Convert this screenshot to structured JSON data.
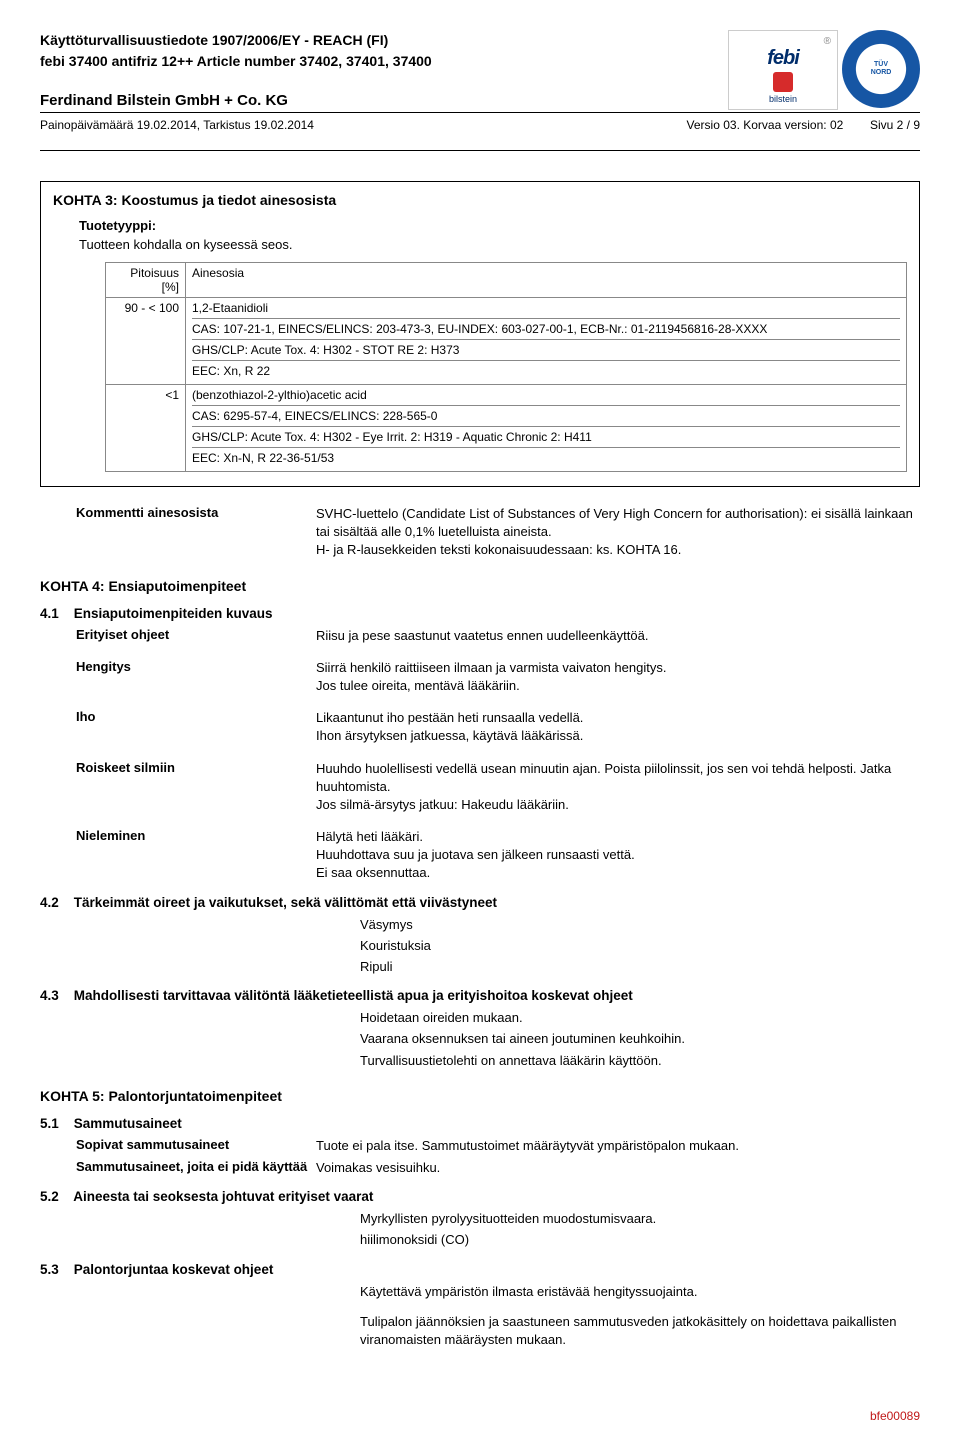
{
  "header": {
    "title1": "Käyttöturvallisuustiedote 1907/2006/EY - REACH (FI)",
    "title2": "febi 37400 antifriz 12++ Article number 37402, 37401, 37400",
    "company": "Ferdinand Bilstein GmbH + Co. KG",
    "date_line": "Painopäivämäärä 19.02.2014, Tarkistus 19.02.2014",
    "version": "Versio 03. Korvaa version: 02",
    "page": "Sivu 2 / 9"
  },
  "logos": {
    "febi_name": "febi",
    "febi_sub": "bilstein",
    "tuv_label": "TÜV NORD"
  },
  "section3": {
    "title": "KOHTA 3: Koostumus ja tiedot ainesosista",
    "type_label": "Tuotetyyppi:",
    "type_value": "Tuotteen kohdalla on kyseessä seos.",
    "col_pct": "Pitoisuus [%]",
    "col_name": "Ainesosia",
    "rows": [
      {
        "pct": "90 - < 100",
        "name": "1,2-Etaanidioli",
        "lines": [
          "CAS: 107-21-1, EINECS/ELINCS: 203-473-3, EU-INDEX: 603-027-00-1, ECB-Nr.: 01-2119456816-28-XXXX",
          "GHS/CLP: Acute Tox. 4: H302 - STOT RE 2: H373",
          "EEC: Xn, R 22"
        ]
      },
      {
        "pct": "<1",
        "name": "(benzothiazol-2-ylthio)acetic acid",
        "lines": [
          "CAS: 6295-57-4, EINECS/ELINCS: 228-565-0",
          "GHS/CLP: Acute Tox. 4: H302 - Eye Irrit. 2: H319 - Aquatic Chronic 2: H411",
          "EEC: Xn-N, R 22-36-51/53"
        ]
      }
    ],
    "comment_label": "Kommentti ainesosista",
    "comment_value": "SVHC-luettelo (Candidate List of Substances of Very High Concern for authorisation): ei sisällä lainkaan tai sisältää alle 0,1% luetelluista aineista.\nH- ja R-lausekkeiden teksti kokonaisuudessaan: ks. KOHTA 16."
  },
  "section4": {
    "title": "KOHTA 4: Ensiaputoimenpiteet",
    "s41_num": "4.1",
    "s41_title": "Ensiaputoimenpiteiden kuvaus",
    "rows": [
      {
        "k": "Erityiset ohjeet",
        "v": "Riisu ja pese saastunut vaatetus ennen uudelleenkäyttöä."
      },
      {
        "k": "Hengitys",
        "v": "Siirrä henkilö raittiiseen ilmaan ja varmista vaivaton hengitys.\nJos tulee oireita, mentävä lääkäriin."
      },
      {
        "k": "Iho",
        "v": "Likaantunut iho pestään heti runsaalla vedellä.\nIhon ärsytyksen jatkuessa, käytävä lääkärissä."
      },
      {
        "k": "Roiskeet silmiin",
        "v": "Huuhdo huolellisesti vedellä usean minuutin ajan. Poista piilolinssit, jos sen voi tehdä helposti. Jatka huuhtomista.\nJos silmä-ärsytys jatkuu: Hakeudu lääkäriin."
      },
      {
        "k": "Nieleminen",
        "v": "Hälytä heti lääkäri.\nHuuhdottava suu ja juotava sen jälkeen runsaasti vettä.\nEi saa oksennuttaa."
      }
    ],
    "s42_num": "4.2",
    "s42_title": "Tärkeimmät oireet ja vaikutukset, sekä välittömät että viivästyneet",
    "s42_lines": [
      "Väsymys",
      "Kouristuksia",
      "Ripuli"
    ],
    "s43_num": "4.3",
    "s43_title": "Mahdollisesti tarvittavaa välitöntä lääketieteellistä apua ja erityishoitoa koskevat ohjeet",
    "s43_lines": [
      "Hoidetaan oireiden mukaan.",
      "Vaarana oksennuksen tai aineen joutuminen keuhkoihin.",
      "Turvallisuustietolehti on annettava lääkärin käyttöön."
    ]
  },
  "section5": {
    "title": "KOHTA 5: Palontorjuntatoimenpiteet",
    "s51_num": "5.1",
    "s51_title": "Sammutusaineet",
    "s51_rows": [
      {
        "k": "Sopivat sammutusaineet",
        "v": "Tuote ei pala itse. Sammutustoimet määräytyvät ympäristöpalon mukaan."
      },
      {
        "k": "Sammutusaineet, joita ei pidä käyttää",
        "v": "Voimakas vesisuihku."
      }
    ],
    "s52_num": "5.2",
    "s52_title": "Aineesta tai seoksesta johtuvat erityiset vaarat",
    "s52_lines": [
      "Myrkyllisten pyrolyysituotteiden muodostumisvaara.",
      "hiilimonoksidi (CO)"
    ],
    "s53_num": "5.3",
    "s53_title": "Palontorjuntaa koskevat ohjeet",
    "s53_lines": [
      "Käytettävä ympäristön ilmasta eristävää hengityssuojainta.",
      "Tulipalon jäännöksien ja saastuneen sammutusveden jatkokäsittely on hoidettava paikallisten viranomaisten määräysten mukaan."
    ]
  },
  "footer_code": "bfe00089"
}
